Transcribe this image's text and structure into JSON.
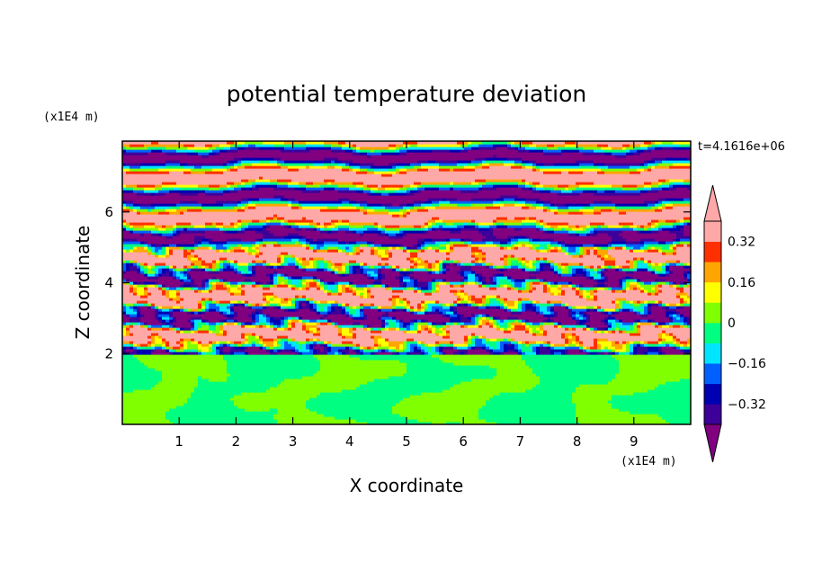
{
  "chart_data": {
    "type": "heatmap",
    "title": "potential temperature deviation",
    "xlabel": "X coordinate",
    "ylabel": "Z coordinate",
    "x_unit_label": "(x1E4 m)",
    "y_unit_label": "(x1E4 m)",
    "time_label": "t=4.1616e+06",
    "xlim": [
      0,
      10
    ],
    "ylim": [
      0,
      8
    ],
    "x_ticks": [
      "1",
      "2",
      "3",
      "4",
      "5",
      "6",
      "7",
      "8",
      "9"
    ],
    "y_ticks": [
      "2",
      "4",
      "6"
    ],
    "colorbar": {
      "levels": [
        -0.4,
        -0.32,
        -0.24,
        -0.16,
        -0.08,
        0,
        0.08,
        0.16,
        0.24,
        0.32,
        0.4
      ],
      "tick_labels": [
        "0.32",
        "0.16",
        "0",
        "−0.16",
        "−0.32"
      ],
      "tick_values": [
        0.32,
        0.16,
        0,
        -0.16,
        -0.32
      ],
      "colors": [
        "#800080",
        "#3d0099",
        "#0000b3",
        "#0060ff",
        "#00e5ff",
        "#00ff80",
        "#80ff00",
        "#ffff00",
        "#ffa500",
        "#ff3000",
        "#ffa8a8"
      ],
      "color_order": "bottom_to_top"
    },
    "field_description": {
      "lower_layer_z": [
        0,
        2
      ],
      "lower_layer_classes": [
        -0.08,
        0.08
      ],
      "upper_layer_z": [
        2,
        8
      ],
      "upper_layer_pattern": "horizontal alternating bands of strong positive and negative deviation with mixed turbulent structure between z=2 and z=5"
    },
    "grid": false,
    "legend": "right colorbar"
  }
}
